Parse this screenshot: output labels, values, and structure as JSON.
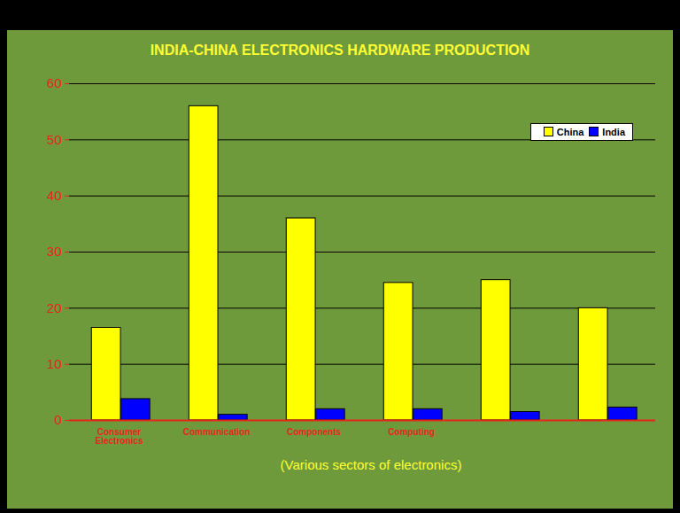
{
  "chart_data": {
    "type": "bar",
    "title": "INDIA-CHINA ELECTRONICS HARDWARE PRODUCTION",
    "xlabel": "(Various sectors of electronics)",
    "categories": [
      "Consumer Electronics",
      "Communication",
      "Components",
      "Computing",
      null,
      null
    ],
    "series": [
      {
        "name": "China",
        "color": "#ffff00",
        "values": [
          16.5,
          56,
          36,
          24.5,
          25,
          20
        ]
      },
      {
        "name": "India",
        "color": "#0000ff",
        "values": [
          3.8,
          1,
          2,
          2,
          1.5,
          2.3
        ]
      }
    ],
    "ylim": [
      0,
      60
    ],
    "yticks": [
      0,
      10,
      20,
      30,
      40,
      50,
      60
    ],
    "grid": true,
    "legend": "top-right"
  }
}
